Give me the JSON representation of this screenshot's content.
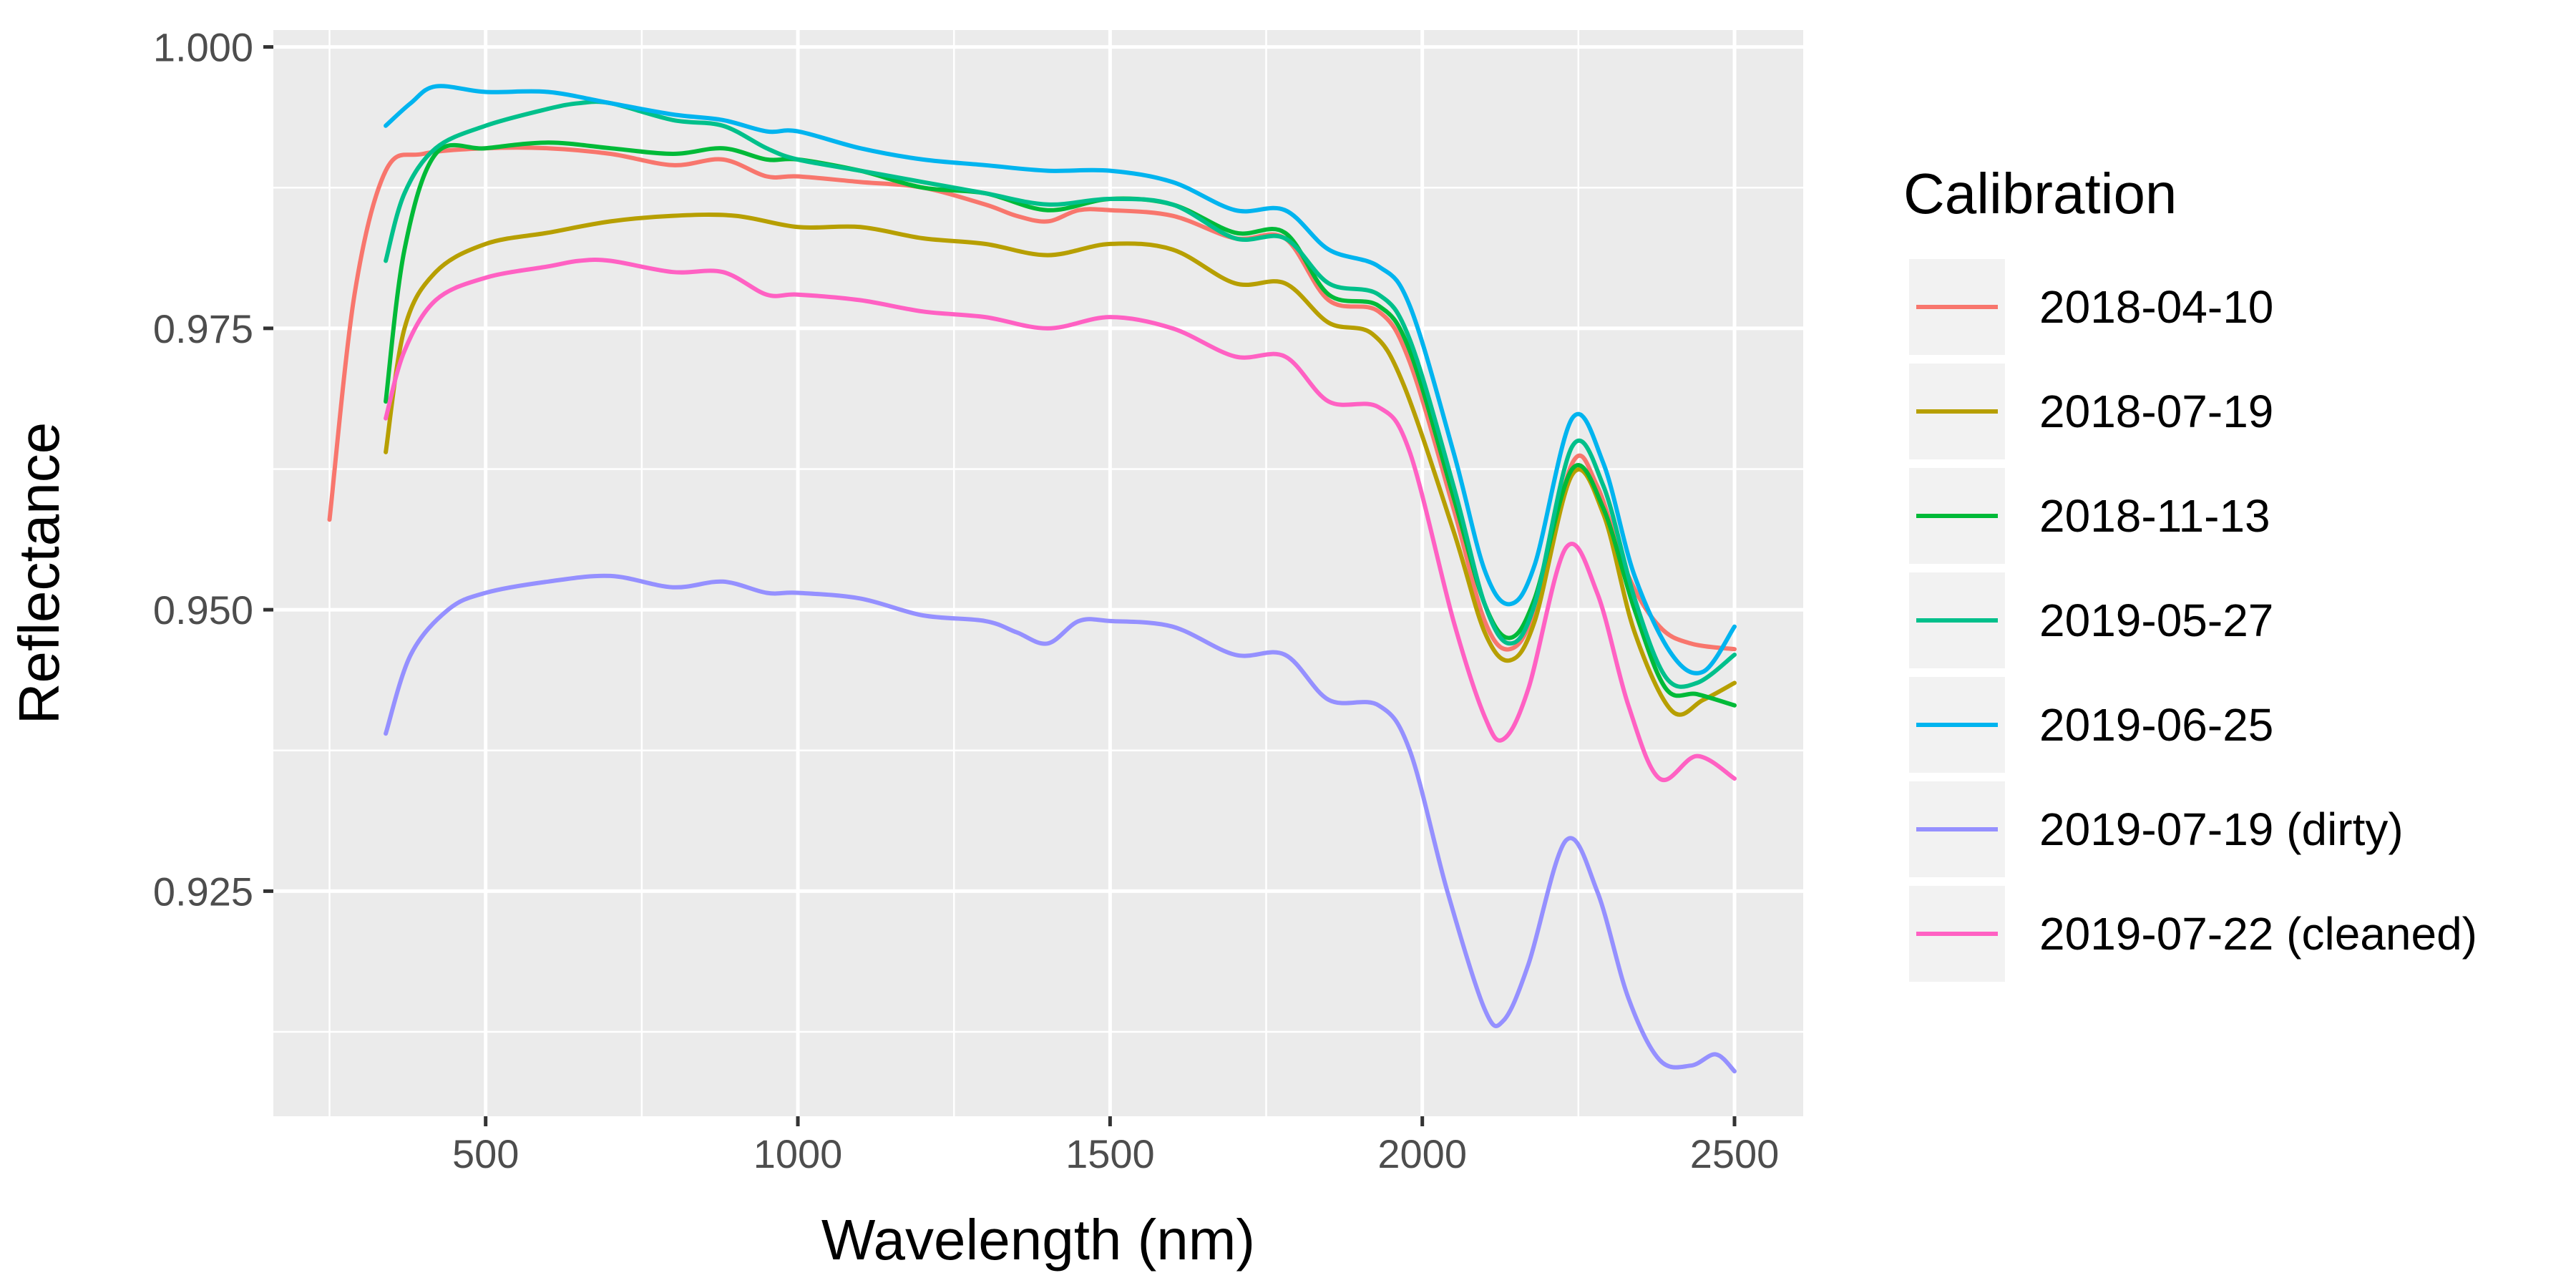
{
  "chart_data": {
    "type": "line",
    "xlabel": "Wavelength (nm)",
    "ylabel": "Reflectance",
    "xlim": [
      160,
      2610
    ],
    "ylim": [
      0.905,
      1.0015
    ],
    "x_ticks": [
      500,
      1000,
      1500,
      2000,
      2500
    ],
    "x_tick_labels": [
      "500",
      "1000",
      "1500",
      "2000",
      "2500"
    ],
    "y_ticks": [
      0.925,
      0.95,
      0.975,
      1.0
    ],
    "y_tick_labels": [
      "0.925",
      "0.950",
      "0.975",
      "1.000"
    ],
    "grid": true,
    "legend": {
      "title": "Calibration",
      "position": "right"
    },
    "series": [
      {
        "name": "2018-04-10",
        "color": "#F8766D",
        "points": [
          [
            250,
            0.958
          ],
          [
            290,
            0.978
          ],
          [
            340,
            0.989
          ],
          [
            400,
            0.9905
          ],
          [
            500,
            0.991
          ],
          [
            600,
            0.991
          ],
          [
            700,
            0.9905
          ],
          [
            800,
            0.9895
          ],
          [
            880,
            0.99
          ],
          [
            950,
            0.9885
          ],
          [
            1000,
            0.9885
          ],
          [
            1100,
            0.988
          ],
          [
            1200,
            0.9875
          ],
          [
            1300,
            0.986
          ],
          [
            1350,
            0.985
          ],
          [
            1400,
            0.9845
          ],
          [
            1450,
            0.9855
          ],
          [
            1500,
            0.9855
          ],
          [
            1600,
            0.985
          ],
          [
            1700,
            0.983
          ],
          [
            1780,
            0.983
          ],
          [
            1850,
            0.9775
          ],
          [
            1930,
            0.9765
          ],
          [
            1980,
            0.972
          ],
          [
            2050,
            0.959
          ],
          [
            2100,
            0.949
          ],
          [
            2140,
            0.9465
          ],
          [
            2180,
            0.95
          ],
          [
            2240,
            0.963
          ],
          [
            2280,
            0.961
          ],
          [
            2330,
            0.953
          ],
          [
            2380,
            0.9485
          ],
          [
            2430,
            0.947
          ],
          [
            2500,
            0.9465
          ]
        ]
      },
      {
        "name": "2018-07-19",
        "color": "#B79F00",
        "points": [
          [
            340,
            0.964
          ],
          [
            370,
            0.975
          ],
          [
            420,
            0.98
          ],
          [
            500,
            0.9825
          ],
          [
            600,
            0.9835
          ],
          [
            700,
            0.9845
          ],
          [
            800,
            0.985
          ],
          [
            900,
            0.985
          ],
          [
            1000,
            0.984
          ],
          [
            1100,
            0.984
          ],
          [
            1200,
            0.983
          ],
          [
            1300,
            0.9825
          ],
          [
            1400,
            0.9815
          ],
          [
            1500,
            0.9825
          ],
          [
            1600,
            0.982
          ],
          [
            1700,
            0.979
          ],
          [
            1780,
            0.979
          ],
          [
            1850,
            0.9755
          ],
          [
            1920,
            0.9745
          ],
          [
            1970,
            0.97
          ],
          [
            2050,
            0.957
          ],
          [
            2100,
            0.948
          ],
          [
            2140,
            0.9455
          ],
          [
            2180,
            0.949
          ],
          [
            2240,
            0.962
          ],
          [
            2290,
            0.9585
          ],
          [
            2340,
            0.948
          ],
          [
            2400,
            0.941
          ],
          [
            2450,
            0.942
          ],
          [
            2500,
            0.9435
          ]
        ]
      },
      {
        "name": "2018-11-13",
        "color": "#00BA38",
        "points": [
          [
            340,
            0.9685
          ],
          [
            370,
            0.982
          ],
          [
            420,
            0.9905
          ],
          [
            500,
            0.991
          ],
          [
            600,
            0.9915
          ],
          [
            700,
            0.991
          ],
          [
            800,
            0.9905
          ],
          [
            880,
            0.991
          ],
          [
            950,
            0.99
          ],
          [
            1000,
            0.99
          ],
          [
            1100,
            0.989
          ],
          [
            1200,
            0.9875
          ],
          [
            1300,
            0.987
          ],
          [
            1400,
            0.9855
          ],
          [
            1500,
            0.9865
          ],
          [
            1600,
            0.986
          ],
          [
            1700,
            0.9835
          ],
          [
            1780,
            0.9835
          ],
          [
            1850,
            0.978
          ],
          [
            1930,
            0.977
          ],
          [
            1980,
            0.973
          ],
          [
            2050,
            0.96
          ],
          [
            2100,
            0.9505
          ],
          [
            2140,
            0.9475
          ],
          [
            2180,
            0.951
          ],
          [
            2240,
            0.9625
          ],
          [
            2290,
            0.959
          ],
          [
            2340,
            0.95
          ],
          [
            2390,
            0.943
          ],
          [
            2440,
            0.9425
          ],
          [
            2500,
            0.9415
          ]
        ]
      },
      {
        "name": "2019-05-27",
        "color": "#00C08B",
        "points": [
          [
            340,
            0.981
          ],
          [
            370,
            0.987
          ],
          [
            420,
            0.991
          ],
          [
            500,
            0.993
          ],
          [
            600,
            0.9945
          ],
          [
            650,
            0.995
          ],
          [
            700,
            0.995
          ],
          [
            800,
            0.9935
          ],
          [
            880,
            0.993
          ],
          [
            950,
            0.991
          ],
          [
            1000,
            0.99
          ],
          [
            1100,
            0.989
          ],
          [
            1200,
            0.988
          ],
          [
            1300,
            0.987
          ],
          [
            1400,
            0.986
          ],
          [
            1500,
            0.9865
          ],
          [
            1600,
            0.986
          ],
          [
            1700,
            0.983
          ],
          [
            1780,
            0.983
          ],
          [
            1850,
            0.979
          ],
          [
            1930,
            0.978
          ],
          [
            1980,
            0.974
          ],
          [
            2050,
            0.961
          ],
          [
            2100,
            0.9505
          ],
          [
            2140,
            0.947
          ],
          [
            2180,
            0.9505
          ],
          [
            2240,
            0.9645
          ],
          [
            2290,
            0.961
          ],
          [
            2340,
            0.951
          ],
          [
            2390,
            0.944
          ],
          [
            2440,
            0.9435
          ],
          [
            2500,
            0.946
          ]
        ]
      },
      {
        "name": "2019-06-25",
        "color": "#00B4EF",
        "points": [
          [
            340,
            0.993
          ],
          [
            380,
            0.995
          ],
          [
            420,
            0.9965
          ],
          [
            500,
            0.996
          ],
          [
            600,
            0.996
          ],
          [
            700,
            0.995
          ],
          [
            800,
            0.994
          ],
          [
            880,
            0.9935
          ],
          [
            950,
            0.9925
          ],
          [
            1000,
            0.9925
          ],
          [
            1100,
            0.991
          ],
          [
            1200,
            0.99
          ],
          [
            1300,
            0.9895
          ],
          [
            1400,
            0.989
          ],
          [
            1500,
            0.989
          ],
          [
            1600,
            0.988
          ],
          [
            1700,
            0.9855
          ],
          [
            1780,
            0.9855
          ],
          [
            1850,
            0.982
          ],
          [
            1930,
            0.9805
          ],
          [
            1980,
            0.977
          ],
          [
            2050,
            0.964
          ],
          [
            2100,
            0.9535
          ],
          [
            2140,
            0.9505
          ],
          [
            2180,
            0.954
          ],
          [
            2240,
            0.967
          ],
          [
            2290,
            0.963
          ],
          [
            2340,
            0.953
          ],
          [
            2400,
            0.946
          ],
          [
            2450,
            0.9445
          ],
          [
            2500,
            0.9485
          ]
        ]
      },
      {
        "name": "2019-07-19 (dirty)",
        "color": "#9590FF",
        "points": [
          [
            340,
            0.939
          ],
          [
            380,
            0.946
          ],
          [
            440,
            0.95
          ],
          [
            500,
            0.9515
          ],
          [
            600,
            0.9525
          ],
          [
            700,
            0.953
          ],
          [
            800,
            0.952
          ],
          [
            880,
            0.9525
          ],
          [
            950,
            0.9515
          ],
          [
            1000,
            0.9515
          ],
          [
            1100,
            0.951
          ],
          [
            1200,
            0.9495
          ],
          [
            1300,
            0.949
          ],
          [
            1350,
            0.948
          ],
          [
            1400,
            0.947
          ],
          [
            1450,
            0.949
          ],
          [
            1500,
            0.949
          ],
          [
            1600,
            0.9485
          ],
          [
            1700,
            0.946
          ],
          [
            1780,
            0.946
          ],
          [
            1850,
            0.942
          ],
          [
            1930,
            0.9415
          ],
          [
            1980,
            0.9375
          ],
          [
            2040,
            0.925
          ],
          [
            2100,
            0.9145
          ],
          [
            2130,
            0.9135
          ],
          [
            2170,
            0.9185
          ],
          [
            2230,
            0.9295
          ],
          [
            2280,
            0.925
          ],
          [
            2330,
            0.9155
          ],
          [
            2380,
            0.91
          ],
          [
            2430,
            0.9095
          ],
          [
            2470,
            0.9105
          ],
          [
            2500,
            0.909
          ]
        ]
      },
      {
        "name": "2019-07-22 (cleaned)",
        "color": "#FF61C3",
        "points": [
          [
            340,
            0.967
          ],
          [
            370,
            0.973
          ],
          [
            420,
            0.9775
          ],
          [
            500,
            0.9795
          ],
          [
            600,
            0.9805
          ],
          [
            650,
            0.981
          ],
          [
            700,
            0.981
          ],
          [
            800,
            0.98
          ],
          [
            880,
            0.98
          ],
          [
            950,
            0.978
          ],
          [
            1000,
            0.978
          ],
          [
            1100,
            0.9775
          ],
          [
            1200,
            0.9765
          ],
          [
            1300,
            0.976
          ],
          [
            1400,
            0.975
          ],
          [
            1500,
            0.976
          ],
          [
            1600,
            0.975
          ],
          [
            1700,
            0.9725
          ],
          [
            1780,
            0.9725
          ],
          [
            1850,
            0.9685
          ],
          [
            1930,
            0.968
          ],
          [
            1980,
            0.964
          ],
          [
            2050,
            0.949
          ],
          [
            2100,
            0.9405
          ],
          [
            2130,
            0.9385
          ],
          [
            2170,
            0.943
          ],
          [
            2230,
            0.9555
          ],
          [
            2280,
            0.9515
          ],
          [
            2330,
            0.9415
          ],
          [
            2380,
            0.935
          ],
          [
            2440,
            0.937
          ],
          [
            2500,
            0.935
          ]
        ]
      }
    ]
  }
}
